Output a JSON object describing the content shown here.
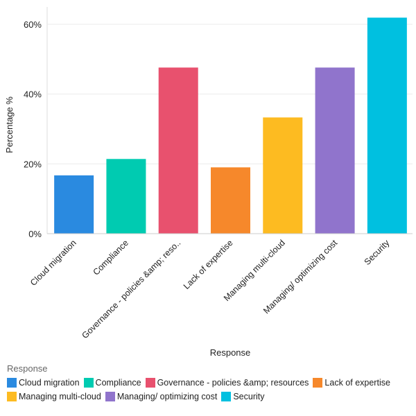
{
  "chart_data": {
    "type": "bar",
    "categories": [
      "Cloud migration",
      "Compliance",
      "Governance - policies &amp; resources",
      "Lack of expertise",
      "Managing multi-cloud",
      "Managing/ optimizing cost",
      "Security"
    ],
    "tick_labels": [
      "Cloud migration",
      "Compliance",
      "Governance - policies &amp; reso..",
      "Lack of expertise",
      "Managing multi-cloud",
      "Managing/ optimizing cost",
      "Security"
    ],
    "values": [
      16.7,
      21.4,
      47.6,
      19.0,
      33.3,
      47.6,
      61.9
    ],
    "colors": [
      "#2a8ae0",
      "#00cbb1",
      "#e8516e",
      "#f6882b",
      "#fdbb21",
      "#9074cc",
      "#00c0e0"
    ],
    "xlabel": "Response",
    "ylabel": "Percentage %",
    "ylim": [
      0,
      65
    ],
    "yticks": [
      0,
      20,
      40,
      60
    ],
    "ytick_labels": [
      "0%",
      "20%",
      "40%",
      "60%"
    ],
    "grid": true,
    "legend": {
      "title": "Response",
      "placement": "bottom"
    }
  }
}
